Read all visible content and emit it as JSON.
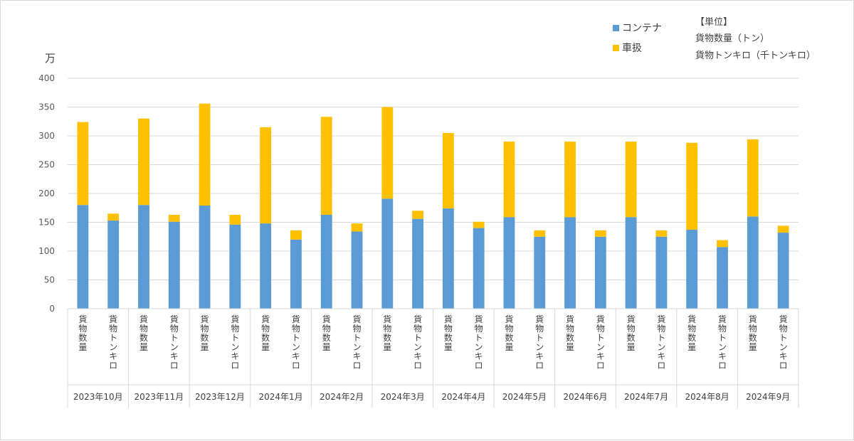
{
  "chart_data": {
    "type": "bar",
    "stacked": true,
    "y_unit_label": "万",
    "ylim": [
      0,
      400
    ],
    "yticks": [
      0,
      50,
      100,
      150,
      200,
      250,
      300,
      350,
      400
    ],
    "grid": true,
    "legend_position": "top-right",
    "groups": [
      "2023年10月",
      "2023年11月",
      "2023年12月",
      "2024年1月",
      "2024年2月",
      "2024年3月",
      "2024年4月",
      "2024年5月",
      "2024年6月",
      "2024年7月",
      "2024年8月",
      "2024年9月"
    ],
    "subcategories": [
      "貨物数量",
      "貨物トンキロ"
    ],
    "series": [
      {
        "name": "コンテナ",
        "color": "#5b9bd5",
        "values": [
          180,
          153,
          180,
          151,
          179,
          146,
          148,
          120,
          163,
          134,
          191,
          156,
          174,
          140,
          159,
          125,
          159,
          125,
          159,
          125,
          137,
          107,
          160,
          132
        ]
      },
      {
        "name": "車扱",
        "color": "#ffc000",
        "values": [
          144,
          12,
          150,
          12,
          177,
          17,
          167,
          16,
          170,
          14,
          159,
          14,
          131,
          11,
          131,
          11,
          131,
          11,
          131,
          11,
          151,
          12,
          134,
          12
        ]
      }
    ],
    "unit_note": {
      "title": "【単位】",
      "lines": [
        "貨物数量（トン）",
        "貨物トンキロ（千トンキロ）"
      ]
    }
  }
}
